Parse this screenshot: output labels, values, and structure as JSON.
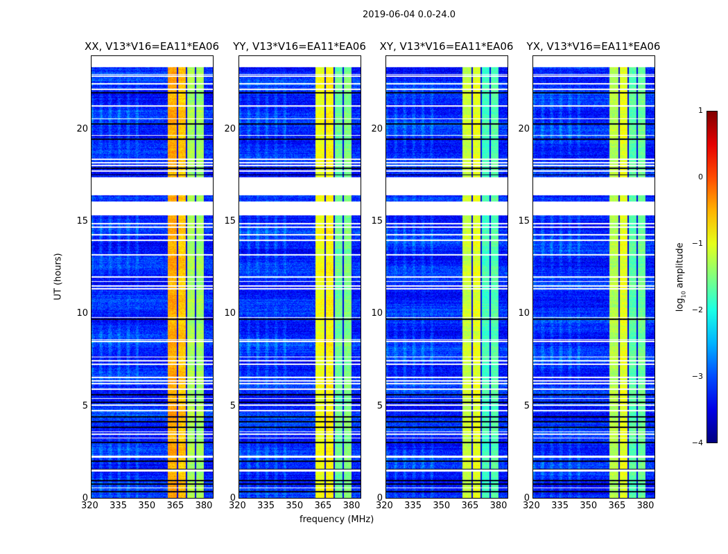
{
  "chart_data": {
    "type": "heatmap",
    "title": "2019-06-04 0.0-24.0",
    "xlabel": "frequency (MHz)",
    "ylabel": "UT (hours)",
    "xlim": [
      320,
      384.5
    ],
    "ylim": [
      0,
      24
    ],
    "xticks": [
      320,
      335,
      350,
      365,
      380
    ],
    "yticks": [
      0,
      5,
      10,
      15,
      20
    ],
    "colorbar": {
      "label_main": "log",
      "label_sub": "10",
      "label_rest": " amplitude",
      "range": [
        -4,
        1
      ],
      "ticks": [
        1,
        0,
        -1,
        -2,
        -3,
        -4
      ],
      "cmap": "jet"
    },
    "data_extent_hours": [
      0,
      23.4
    ],
    "flagged_hours": [
      [
        15.35,
        16.1
      ],
      [
        16.45,
        17.4
      ],
      [
        23.4,
        24
      ]
    ],
    "thin_flag_hours": [
      0.55,
      1.45,
      1.5,
      2.2,
      2.25,
      3.25,
      3.45,
      3.6,
      4.75,
      5.05,
      5.4,
      5.9,
      6.2,
      6.35,
      6.55,
      7.25,
      7.45,
      7.65,
      8.5,
      8.6,
      9.8,
      11.35,
      11.5,
      11.75,
      12.0,
      13.2,
      14.0,
      14.3,
      14.7,
      14.9,
      17.75,
      18.05,
      18.2,
      18.4,
      19.7,
      20.6,
      21.3,
      22.2,
      22.5,
      22.9,
      23.0
    ],
    "dark_hours": [
      0.35,
      0.75,
      0.95,
      1.55,
      2.0,
      3.0,
      3.85,
      4.15,
      4.4,
      5.2,
      5.6,
      9.7,
      17.55,
      17.9,
      19.5,
      20.3,
      22.0
    ],
    "bands_mhz": [
      [
        360.7,
        365.5
      ],
      [
        365.8,
        370.2
      ],
      [
        370.5,
        375.1
      ],
      [
        375.3,
        380.0
      ]
    ],
    "background_level": -3.2,
    "panels": [
      {
        "title": "XX, V13*V16=EA11*EA06",
        "band_levels": [
          -0.45,
          -0.6,
          -1.3,
          -1.35
        ]
      },
      {
        "title": "YY, V13*V16=EA11*EA06",
        "band_levels": [
          -0.95,
          -0.85,
          -1.6,
          -1.5
        ]
      },
      {
        "title": "XY, V13*V16=EA11*EA06",
        "band_levels": [
          -1.15,
          -1.0,
          -1.8,
          -1.7
        ]
      },
      {
        "title": "YX, V13*V16=EA11*EA06",
        "band_levels": [
          -1.25,
          -1.0,
          -1.7,
          -1.6
        ]
      }
    ]
  }
}
